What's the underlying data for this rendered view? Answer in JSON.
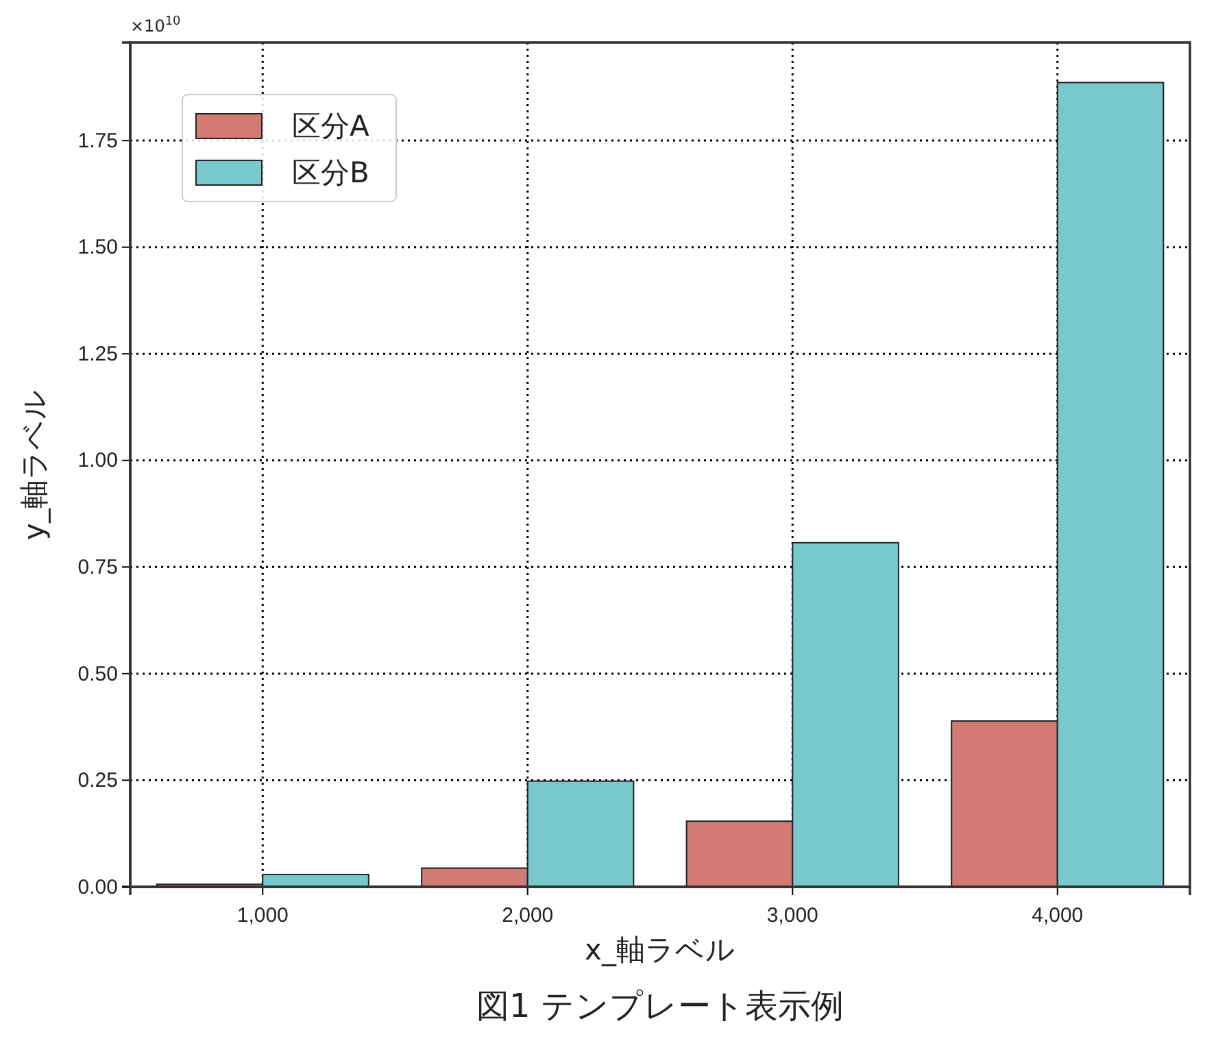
{
  "chart_data": {
    "type": "bar",
    "title": "図1 テンプレート表示例",
    "xlabel": "x_軸ラベル",
    "ylabel": "y_軸ラベル",
    "categories": [
      "1,000",
      "2,000",
      "3,000",
      "4,000"
    ],
    "series": [
      {
        "name": "区分A",
        "color": "#d17b74",
        "values": [
          0.006,
          0.044,
          0.154,
          0.389
        ]
      },
      {
        "name": "区分B",
        "color": "#77c9ce",
        "values": [
          0.029,
          0.248,
          0.807,
          1.886
        ]
      }
    ],
    "ylim": [
      0,
      1.98
    ],
    "yticks": [
      {
        "value": 0,
        "label": "0.00"
      },
      0.25,
      {
        "value": 0.5,
        "label": "0.50"
      },
      0.75,
      {
        "value": 1,
        "label": "1.00"
      },
      1.25,
      {
        "value": 1.5,
        "label": "1.50"
      },
      1.75
    ],
    "annotations": [
      "×10$^{10}$"
    ],
    "grid": true,
    "legend": "top left"
  }
}
